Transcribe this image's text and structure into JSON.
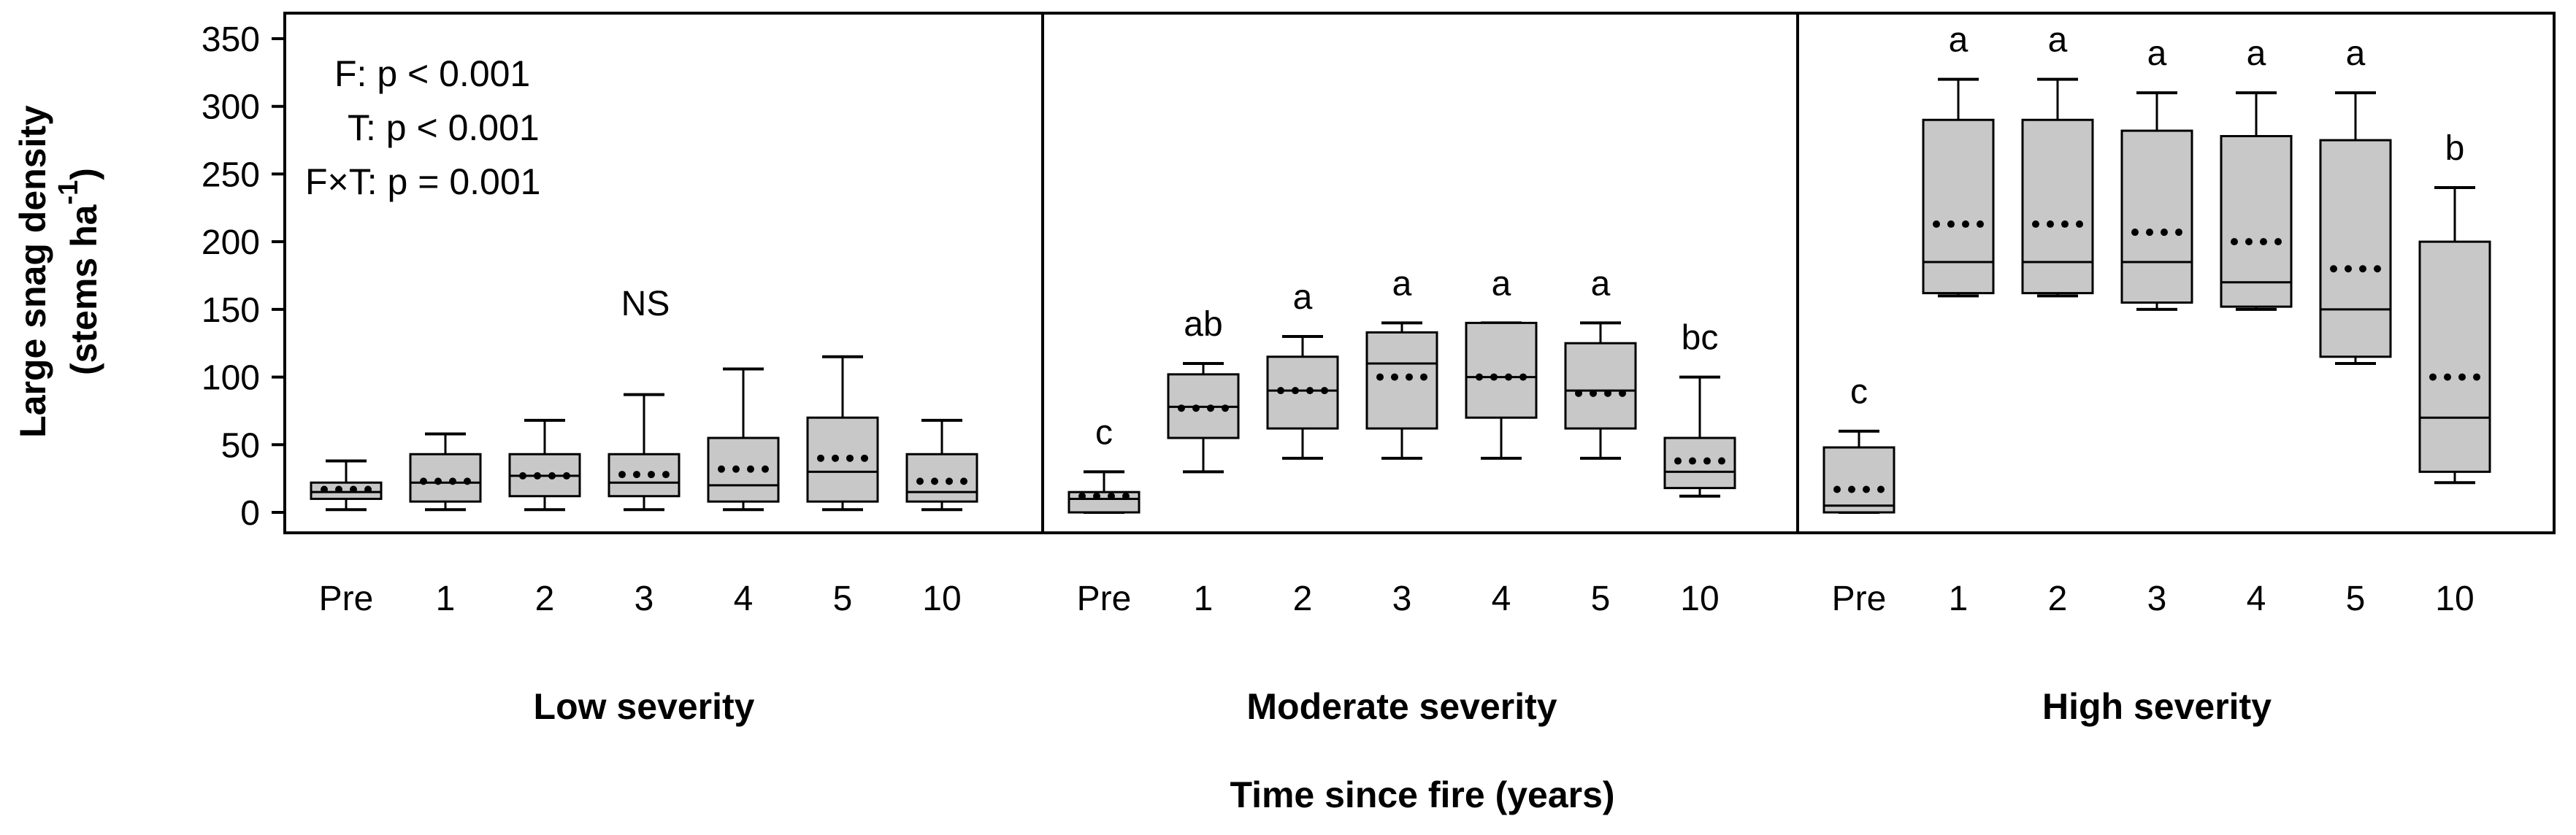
{
  "chart_data": {
    "type": "box",
    "xlabel": "Time since fire (years)",
    "ylabel_line1": "Large snag density",
    "ylabel_line2": "(stems ha",
    "ylabel_exp": "-1",
    "ylabel_close": ")",
    "ylim": [
      0,
      350
    ],
    "yticks": [
      0,
      50,
      100,
      150,
      200,
      250,
      300,
      350
    ],
    "ytick_labels": [
      "0",
      "50",
      "100",
      "150",
      "200",
      "250",
      "300",
      "350"
    ],
    "categories": [
      "Pre",
      "1",
      "2",
      "3",
      "4",
      "5",
      "10"
    ],
    "stats_text": [
      "F:  p < 0.001",
      "T:  p < 0.001",
      "F×T:  p = 0.001"
    ],
    "panels": [
      {
        "name": "Low severity",
        "annotation": "NS",
        "boxes": [
          {
            "cat": "Pre",
            "min": 2,
            "q1": 10,
            "median": 15,
            "q3": 22,
            "max": 38,
            "mean": 17,
            "letter": ""
          },
          {
            "cat": "1",
            "min": 2,
            "q1": 8,
            "median": 22,
            "q3": 43,
            "max": 58,
            "mean": 23,
            "letter": ""
          },
          {
            "cat": "2",
            "min": 2,
            "q1": 12,
            "median": 27,
            "q3": 43,
            "max": 68,
            "mean": 27,
            "letter": ""
          },
          {
            "cat": "3",
            "min": 2,
            "q1": 12,
            "median": 22,
            "q3": 43,
            "max": 87,
            "mean": 28,
            "letter": ""
          },
          {
            "cat": "4",
            "min": 2,
            "q1": 8,
            "median": 20,
            "q3": 55,
            "max": 106,
            "mean": 32,
            "letter": ""
          },
          {
            "cat": "5",
            "min": 2,
            "q1": 8,
            "median": 30,
            "q3": 70,
            "max": 115,
            "mean": 40,
            "letter": ""
          },
          {
            "cat": "10",
            "min": 2,
            "q1": 8,
            "median": 15,
            "q3": 43,
            "max": 68,
            "mean": 23,
            "letter": ""
          }
        ]
      },
      {
        "name": "Moderate severity",
        "annotation": "",
        "boxes": [
          {
            "cat": "Pre",
            "min": 0,
            "q1": 0,
            "median": 10,
            "q3": 15,
            "max": 30,
            "mean": 12,
            "letter": "c"
          },
          {
            "cat": "1",
            "min": 30,
            "q1": 55,
            "median": 78,
            "q3": 102,
            "max": 110,
            "mean": 77,
            "letter": "ab"
          },
          {
            "cat": "2",
            "min": 40,
            "q1": 62,
            "median": 90,
            "q3": 115,
            "max": 130,
            "mean": 90,
            "letter": "a"
          },
          {
            "cat": "3",
            "min": 40,
            "q1": 62,
            "median": 110,
            "q3": 133,
            "max": 140,
            "mean": 100,
            "letter": "a"
          },
          {
            "cat": "4",
            "min": 40,
            "q1": 70,
            "median": 100,
            "q3": 140,
            "max": 140,
            "mean": 100,
            "letter": "a"
          },
          {
            "cat": "5",
            "min": 40,
            "q1": 62,
            "median": 90,
            "q3": 125,
            "max": 140,
            "mean": 88,
            "letter": "a"
          },
          {
            "cat": "10",
            "min": 12,
            "q1": 18,
            "median": 30,
            "q3": 55,
            "max": 100,
            "mean": 38,
            "letter": "bc"
          }
        ]
      },
      {
        "name": "High severity",
        "annotation": "",
        "boxes": [
          {
            "cat": "Pre",
            "min": 0,
            "q1": 0,
            "median": 5,
            "q3": 48,
            "max": 60,
            "mean": 17,
            "letter": "c"
          },
          {
            "cat": "1",
            "min": 160,
            "q1": 162,
            "median": 185,
            "q3": 290,
            "max": 320,
            "mean": 213,
            "letter": "a"
          },
          {
            "cat": "2",
            "min": 160,
            "q1": 162,
            "median": 185,
            "q3": 290,
            "max": 320,
            "mean": 213,
            "letter": "a"
          },
          {
            "cat": "3",
            "min": 150,
            "q1": 155,
            "median": 185,
            "q3": 282,
            "max": 310,
            "mean": 207,
            "letter": "a"
          },
          {
            "cat": "4",
            "min": 150,
            "q1": 152,
            "median": 170,
            "q3": 278,
            "max": 310,
            "mean": 200,
            "letter": "a"
          },
          {
            "cat": "5",
            "min": 110,
            "q1": 115,
            "median": 150,
            "q3": 275,
            "max": 310,
            "mean": 180,
            "letter": "a"
          },
          {
            "cat": "10",
            "min": 22,
            "q1": 30,
            "median": 70,
            "q3": 200,
            "max": 240,
            "mean": 100,
            "letter": "b"
          }
        ]
      }
    ],
    "colors": {
      "box_fill": "#c8c8c8",
      "stroke": "#000000",
      "background": "#ffffff"
    }
  }
}
